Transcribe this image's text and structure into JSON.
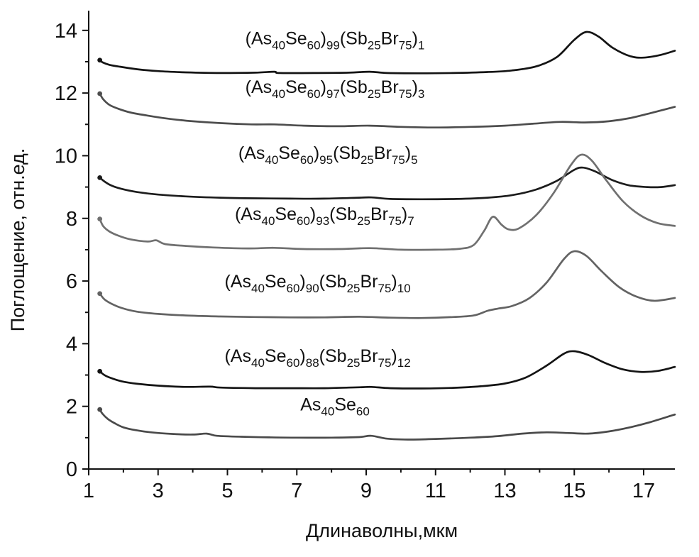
{
  "chart_data": {
    "type": "line",
    "title": "",
    "xlabel": "Длинаволны,мкм",
    "ylabel": "Поглощение, отн.ед.",
    "xlim": [
      1,
      17.9
    ],
    "ylim": [
      0,
      14.63
    ],
    "grid": false,
    "legend_position": "inline-labels",
    "x_ticks": [
      1,
      3,
      5,
      7,
      9,
      11,
      13,
      15,
      17
    ],
    "y_ticks": [
      0,
      2,
      4,
      6,
      8,
      10,
      12,
      14
    ],
    "x_minor_ticks": [
      2,
      4,
      6,
      8,
      10,
      12,
      14,
      16
    ],
    "y_minor_ticks": [
      1,
      3,
      5,
      7,
      9,
      11,
      13
    ],
    "series": [
      {
        "name": "(As40Se60)99(Sb25Br75)1",
        "label_segments": [
          [
            "(As",
            "n"
          ],
          [
            "40",
            "s"
          ],
          [
            "Se",
            "n"
          ],
          [
            "60",
            "s"
          ],
          [
            ")",
            "n"
          ],
          [
            "99",
            "s"
          ],
          [
            "(Sb",
            "n"
          ],
          [
            "25",
            "s"
          ],
          [
            "Br",
            "n"
          ],
          [
            "75",
            "s"
          ],
          [
            ")",
            "n"
          ],
          [
            "1",
            "s"
          ]
        ],
        "label_pos": {
          "x": 8.1,
          "y": 13.55
        },
        "color": "#141414",
        "points": [
          [
            1.32,
            13.05
          ],
          [
            1.4,
            12.98
          ],
          [
            1.6,
            12.9
          ],
          [
            1.9,
            12.84
          ],
          [
            2.4,
            12.76
          ],
          [
            3.0,
            12.7
          ],
          [
            3.8,
            12.66
          ],
          [
            4.8,
            12.64
          ],
          [
            5.8,
            12.65
          ],
          [
            6.35,
            12.68
          ],
          [
            6.5,
            12.64
          ],
          [
            7.5,
            12.64
          ],
          [
            8.5,
            12.65
          ],
          [
            9.1,
            12.68
          ],
          [
            9.6,
            12.64
          ],
          [
            10.5,
            12.63
          ],
          [
            11.5,
            12.64
          ],
          [
            12.5,
            12.67
          ],
          [
            13.2,
            12.72
          ],
          [
            13.9,
            12.85
          ],
          [
            14.5,
            13.15
          ],
          [
            15.0,
            13.7
          ],
          [
            15.35,
            13.95
          ],
          [
            15.7,
            13.8
          ],
          [
            16.1,
            13.45
          ],
          [
            16.6,
            13.18
          ],
          [
            17.0,
            13.13
          ],
          [
            17.5,
            13.22
          ],
          [
            17.9,
            13.35
          ]
        ]
      },
      {
        "name": "(As40Se60)97(Sb25Br75)3",
        "label_segments": [
          [
            "(As",
            "n"
          ],
          [
            "40",
            "s"
          ],
          [
            "Se",
            "n"
          ],
          [
            "60",
            "s"
          ],
          [
            ")",
            "n"
          ],
          [
            "97",
            "s"
          ],
          [
            "(Sb",
            "n"
          ],
          [
            "25",
            "s"
          ],
          [
            "Br",
            "n"
          ],
          [
            "75",
            "s"
          ],
          [
            ")",
            "n"
          ],
          [
            "3",
            "s"
          ]
        ],
        "label_pos": {
          "x": 8.1,
          "y": 12.0
        },
        "color": "#4d4d4d",
        "points": [
          [
            1.32,
            11.98
          ],
          [
            1.42,
            11.8
          ],
          [
            1.6,
            11.62
          ],
          [
            1.85,
            11.5
          ],
          [
            2.2,
            11.38
          ],
          [
            2.7,
            11.28
          ],
          [
            3.3,
            11.18
          ],
          [
            4.0,
            11.1
          ],
          [
            4.8,
            11.04
          ],
          [
            5.7,
            11.0
          ],
          [
            6.35,
            11.0
          ],
          [
            7.2,
            10.96
          ],
          [
            8.2,
            10.94
          ],
          [
            9.1,
            10.96
          ],
          [
            10.0,
            10.92
          ],
          [
            11.0,
            10.9
          ],
          [
            12.0,
            10.92
          ],
          [
            13.0,
            10.96
          ],
          [
            13.8,
            11.02
          ],
          [
            14.6,
            11.08
          ],
          [
            15.3,
            11.06
          ],
          [
            16.0,
            11.1
          ],
          [
            16.6,
            11.2
          ],
          [
            17.2,
            11.36
          ],
          [
            17.9,
            11.56
          ]
        ]
      },
      {
        "name": "(As40Se60)95(Sb25Br75)5",
        "label_segments": [
          [
            "(As",
            "n"
          ],
          [
            "40",
            "s"
          ],
          [
            "Se",
            "n"
          ],
          [
            "60",
            "s"
          ],
          [
            ")",
            "n"
          ],
          [
            "95",
            "s"
          ],
          [
            "(Sb",
            "n"
          ],
          [
            "25",
            "s"
          ],
          [
            "Br",
            "n"
          ],
          [
            "75",
            "s"
          ],
          [
            ")",
            "n"
          ],
          [
            "5",
            "s"
          ]
        ],
        "label_pos": {
          "x": 7.9,
          "y": 9.9
        },
        "color": "#1c1c1c",
        "points": [
          [
            1.32,
            9.3
          ],
          [
            1.45,
            9.18
          ],
          [
            1.65,
            9.05
          ],
          [
            1.95,
            8.94
          ],
          [
            2.4,
            8.84
          ],
          [
            3.0,
            8.76
          ],
          [
            3.8,
            8.7
          ],
          [
            4.8,
            8.66
          ],
          [
            5.8,
            8.64
          ],
          [
            6.8,
            8.63
          ],
          [
            7.8,
            8.63
          ],
          [
            8.8,
            8.66
          ],
          [
            9.15,
            8.67
          ],
          [
            9.7,
            8.62
          ],
          [
            10.6,
            8.61
          ],
          [
            11.6,
            8.62
          ],
          [
            12.5,
            8.66
          ],
          [
            13.2,
            8.74
          ],
          [
            13.9,
            8.92
          ],
          [
            14.5,
            9.2
          ],
          [
            15.0,
            9.55
          ],
          [
            15.25,
            9.62
          ],
          [
            15.6,
            9.5
          ],
          [
            16.1,
            9.22
          ],
          [
            16.6,
            9.05
          ],
          [
            17.1,
            9.0
          ],
          [
            17.5,
            9.0
          ],
          [
            17.9,
            9.06
          ]
        ]
      },
      {
        "name": "(As40Se60)93(Sb25Br75)7",
        "label_segments": [
          [
            "(As",
            "n"
          ],
          [
            "40",
            "s"
          ],
          [
            "Se",
            "n"
          ],
          [
            "60",
            "s"
          ],
          [
            ")",
            "n"
          ],
          [
            "93",
            "s"
          ],
          [
            "(Sb",
            "n"
          ],
          [
            "25",
            "s"
          ],
          [
            "Br",
            "n"
          ],
          [
            "75",
            "s"
          ],
          [
            ")",
            "n"
          ],
          [
            "7",
            "s"
          ]
        ],
        "label_pos": {
          "x": 7.8,
          "y": 7.95
        },
        "color": "#707070",
        "points": [
          [
            1.32,
            7.98
          ],
          [
            1.42,
            7.75
          ],
          [
            1.6,
            7.58
          ],
          [
            1.85,
            7.45
          ],
          [
            2.2,
            7.33
          ],
          [
            2.7,
            7.26
          ],
          [
            2.95,
            7.3
          ],
          [
            3.2,
            7.18
          ],
          [
            3.8,
            7.12
          ],
          [
            4.6,
            7.07
          ],
          [
            5.6,
            7.04
          ],
          [
            6.35,
            7.06
          ],
          [
            7.2,
            7.02
          ],
          [
            8.2,
            7.02
          ],
          [
            9.1,
            7.05
          ],
          [
            10.0,
            7.0
          ],
          [
            11.0,
            7.0
          ],
          [
            11.7,
            7.03
          ],
          [
            12.1,
            7.15
          ],
          [
            12.4,
            7.6
          ],
          [
            12.65,
            8.05
          ],
          [
            12.9,
            7.8
          ],
          [
            13.1,
            7.65
          ],
          [
            13.4,
            7.68
          ],
          [
            13.9,
            8.1
          ],
          [
            14.4,
            8.8
          ],
          [
            14.9,
            9.7
          ],
          [
            15.2,
            10.03
          ],
          [
            15.5,
            9.85
          ],
          [
            15.9,
            9.25
          ],
          [
            16.4,
            8.55
          ],
          [
            16.9,
            8.1
          ],
          [
            17.4,
            7.85
          ],
          [
            17.9,
            7.76
          ]
        ]
      },
      {
        "name": "(As40Se60)90(Sb25Br75)10",
        "label_segments": [
          [
            "(As",
            "n"
          ],
          [
            "40",
            "s"
          ],
          [
            "Se",
            "n"
          ],
          [
            "60",
            "s"
          ],
          [
            ")",
            "n"
          ],
          [
            "90",
            "s"
          ],
          [
            "(Sb",
            "n"
          ],
          [
            "25",
            "s"
          ],
          [
            "Br",
            "n"
          ],
          [
            "75",
            "s"
          ],
          [
            ")",
            "n"
          ],
          [
            "10",
            "s"
          ]
        ],
        "label_pos": {
          "x": 7.6,
          "y": 5.8
        },
        "color": "#636363",
        "points": [
          [
            1.32,
            5.6
          ],
          [
            1.45,
            5.42
          ],
          [
            1.65,
            5.28
          ],
          [
            1.95,
            5.14
          ],
          [
            2.4,
            5.02
          ],
          [
            3.0,
            4.95
          ],
          [
            3.8,
            4.9
          ],
          [
            4.8,
            4.87
          ],
          [
            5.8,
            4.85
          ],
          [
            6.8,
            4.84
          ],
          [
            7.8,
            4.84
          ],
          [
            8.8,
            4.86
          ],
          [
            9.7,
            4.83
          ],
          [
            10.6,
            4.82
          ],
          [
            11.5,
            4.85
          ],
          [
            12.1,
            4.9
          ],
          [
            12.5,
            5.05
          ],
          [
            12.8,
            5.12
          ],
          [
            13.2,
            5.2
          ],
          [
            13.7,
            5.45
          ],
          [
            14.2,
            5.95
          ],
          [
            14.7,
            6.7
          ],
          [
            15.0,
            6.95
          ],
          [
            15.35,
            6.8
          ],
          [
            15.8,
            6.3
          ],
          [
            16.3,
            5.8
          ],
          [
            16.8,
            5.5
          ],
          [
            17.3,
            5.37
          ],
          [
            17.9,
            5.46
          ]
        ]
      },
      {
        "name": "(As40Se60)88(Sb25Br75)12",
        "label_segments": [
          [
            "(As",
            "n"
          ],
          [
            "40",
            "s"
          ],
          [
            "Se",
            "n"
          ],
          [
            "60",
            "s"
          ],
          [
            ")",
            "n"
          ],
          [
            "88",
            "s"
          ],
          [
            "(Sb",
            "n"
          ],
          [
            "25",
            "s"
          ],
          [
            "Br",
            "n"
          ],
          [
            "75",
            "s"
          ],
          [
            ")",
            "n"
          ],
          [
            "12",
            "s"
          ]
        ],
        "label_pos": {
          "x": 7.6,
          "y": 3.42
        },
        "color": "#141414",
        "points": [
          [
            1.32,
            3.12
          ],
          [
            1.45,
            3.0
          ],
          [
            1.65,
            2.9
          ],
          [
            1.95,
            2.8
          ],
          [
            2.4,
            2.72
          ],
          [
            3.0,
            2.66
          ],
          [
            3.8,
            2.62
          ],
          [
            4.5,
            2.63
          ],
          [
            4.8,
            2.6
          ],
          [
            5.8,
            2.58
          ],
          [
            6.8,
            2.58
          ],
          [
            7.8,
            2.58
          ],
          [
            8.8,
            2.61
          ],
          [
            9.15,
            2.62
          ],
          [
            9.7,
            2.58
          ],
          [
            10.6,
            2.57
          ],
          [
            11.5,
            2.59
          ],
          [
            12.3,
            2.64
          ],
          [
            13.0,
            2.73
          ],
          [
            13.6,
            2.92
          ],
          [
            14.2,
            3.3
          ],
          [
            14.7,
            3.68
          ],
          [
            15.0,
            3.76
          ],
          [
            15.4,
            3.64
          ],
          [
            15.9,
            3.38
          ],
          [
            16.4,
            3.18
          ],
          [
            16.9,
            3.1
          ],
          [
            17.4,
            3.13
          ],
          [
            17.9,
            3.26
          ]
        ]
      },
      {
        "name": "As40Se60",
        "label_segments": [
          [
            "As",
            "n"
          ],
          [
            "40",
            "s"
          ],
          [
            "Se",
            "n"
          ],
          [
            "60",
            "s"
          ]
        ],
        "label_pos": {
          "x": 8.1,
          "y": 1.87
        },
        "color": "#4a4a4a",
        "points": [
          [
            1.32,
            1.9
          ],
          [
            1.4,
            1.76
          ],
          [
            1.55,
            1.6
          ],
          [
            1.75,
            1.46
          ],
          [
            2.0,
            1.33
          ],
          [
            2.35,
            1.24
          ],
          [
            2.8,
            1.17
          ],
          [
            3.4,
            1.12
          ],
          [
            4.0,
            1.1
          ],
          [
            4.4,
            1.13
          ],
          [
            4.7,
            1.06
          ],
          [
            5.4,
            1.03
          ],
          [
            6.2,
            1.01
          ],
          [
            7.0,
            1.0
          ],
          [
            8.0,
            1.0
          ],
          [
            8.8,
            1.02
          ],
          [
            9.15,
            1.06
          ],
          [
            9.6,
            0.97
          ],
          [
            10.2,
            0.94
          ],
          [
            11.0,
            0.96
          ],
          [
            12.0,
            1.0
          ],
          [
            12.8,
            1.05
          ],
          [
            13.5,
            1.13
          ],
          [
            14.2,
            1.17
          ],
          [
            14.8,
            1.15
          ],
          [
            15.4,
            1.13
          ],
          [
            16.0,
            1.2
          ],
          [
            16.6,
            1.33
          ],
          [
            17.2,
            1.5
          ],
          [
            17.9,
            1.74
          ]
        ]
      }
    ]
  }
}
